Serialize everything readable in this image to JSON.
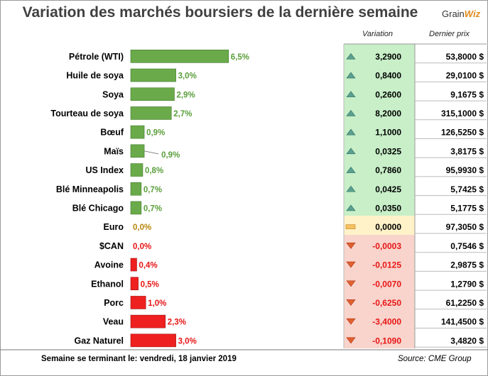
{
  "title": "Variation des marchés boursiers de la dernière semaine",
  "logo": {
    "grain": "Grain",
    "wiz": "Wiz"
  },
  "headers": {
    "variation": "Variation",
    "price": "Dernier prix"
  },
  "footer": {
    "label": "Semaine se terminant le:",
    "date": "vendredi, 18 janvier 2019",
    "source": "Source: CME Group"
  },
  "colors": {
    "up": "#5a9e3a",
    "down": "#e81515",
    "flat": "#b8860b",
    "green_panel": "#c8efc8",
    "red_panel": "#f8d4cc"
  },
  "chart_data": {
    "type": "bar",
    "orientation": "horizontal",
    "categories": [
      "Pétrole (WTI)",
      "Huile de soya",
      "Soya",
      "Tourteau de soya",
      "Bœuf",
      "Maïs",
      "US Index",
      "Blé Minneapolis",
      "Blé Chicago",
      "Euro",
      "$CAN",
      "Avoine",
      "Ethanol",
      "Porc",
      "Veau",
      "Gaz Naturel"
    ],
    "values": [
      6.5,
      3.0,
      2.9,
      2.7,
      0.9,
      0.9,
      0.8,
      0.7,
      0.7,
      0.0,
      0.0,
      0.4,
      0.5,
      1.0,
      2.3,
      3.0
    ],
    "value_labels": [
      "6,5%",
      "3,0%",
      "2,9%",
      "2,7%",
      "0,9%",
      "0,9%",
      "0,8%",
      "0,7%",
      "0,7%",
      "0,0%",
      "0,0%",
      "0,4%",
      "0,5%",
      "1,0%",
      "2,3%",
      "3,0%"
    ],
    "direction": [
      "up",
      "up",
      "up",
      "up",
      "up",
      "up",
      "up",
      "up",
      "up",
      "flat",
      "down",
      "down",
      "down",
      "down",
      "down",
      "down"
    ],
    "variation": [
      "3,2900",
      "0,8400",
      "0,2600",
      "8,2000",
      "1,1000",
      "0,0325",
      "0,7860",
      "0,0425",
      "0,0350",
      "0,0000",
      "-0,0003",
      "-0,0125",
      "-0,0070",
      "-0,6250",
      "-3,4000",
      "-0,1090"
    ],
    "last_price": [
      "53,8000 $",
      "29,0100 $",
      "9,1675 $",
      "315,1000 $",
      "126,5250 $",
      "3,8175 $",
      "95,9930 $",
      "5,7425 $",
      "5,1775 $",
      "97,3050 $",
      "0,7546 $",
      "2,9875 $",
      "1,2790 $",
      "61,2250 $",
      "141,4500 $",
      "3,4820 $"
    ]
  }
}
